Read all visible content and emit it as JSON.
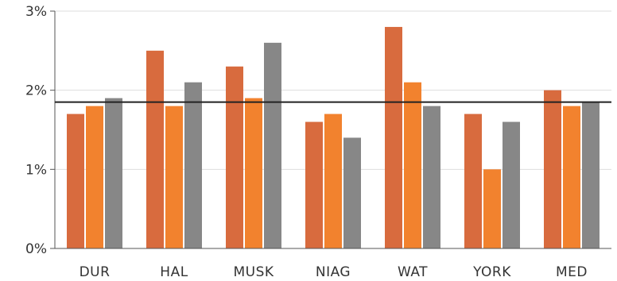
{
  "chart_data": {
    "type": "bar",
    "categories": [
      "DUR",
      "HAL",
      "MUSK",
      "NIAG",
      "WAT",
      "YORK",
      "MED"
    ],
    "series": [
      {
        "values": [
          1.7,
          2.5,
          2.3,
          1.6,
          2.8,
          1.7,
          2.0
        ]
      },
      {
        "values": [
          1.8,
          1.8,
          1.9,
          1.7,
          2.1,
          1.0,
          1.8
        ]
      },
      {
        "values": [
          1.9,
          2.1,
          2.6,
          1.4,
          1.8,
          1.6,
          1.85
        ]
      }
    ],
    "reference_line": 1.85,
    "ylim": [
      0,
      3
    ],
    "yticks": [
      {
        "value": 0,
        "label": "0%"
      },
      {
        "value": 1,
        "label": "1%"
      },
      {
        "value": 2,
        "label": "2%"
      },
      {
        "value": 3,
        "label": "3%"
      }
    ],
    "grid": true,
    "legend": "none",
    "title": "",
    "xlabel": "",
    "ylabel": "",
    "colors": {
      "series": [
        "#d86b3e",
        "#f2822e",
        "#878787"
      ],
      "reference_line": "#222222",
      "grid": "#dddddd",
      "axis": "#555555"
    }
  }
}
